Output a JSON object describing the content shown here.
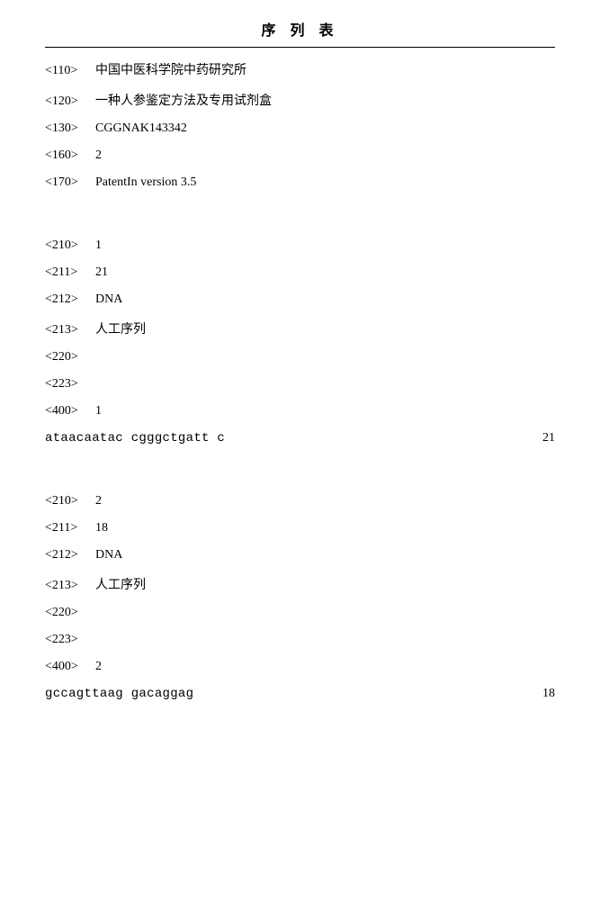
{
  "title": "序 列 表",
  "header": [
    {
      "code": "<110>",
      "value": "中国中医科学院中药研究所"
    },
    {
      "code": "<120>",
      "value": "一种人参鉴定方法及专用试剂盒"
    },
    {
      "code": "<130>",
      "value": "CGGNAK143342"
    },
    {
      "code": "<160>",
      "value": "2"
    },
    {
      "code": "<170>",
      "value": "PatentIn version 3.5"
    }
  ],
  "seq1_meta": [
    {
      "code": "<210>",
      "value": "1"
    },
    {
      "code": "<211>",
      "value": "21"
    },
    {
      "code": "<212>",
      "value": "DNA"
    },
    {
      "code": "<213>",
      "value": "人工序列"
    },
    {
      "code": "<220>",
      "value": ""
    },
    {
      "code": "<223>",
      "value": ""
    },
    {
      "code": "<400>",
      "value": "1"
    }
  ],
  "seq1": {
    "text": "ataacaatac cgggctgatt c",
    "len": "21"
  },
  "seq2_meta": [
    {
      "code": "<210>",
      "value": "2"
    },
    {
      "code": "<211>",
      "value": "18"
    },
    {
      "code": "<212>",
      "value": "DNA"
    },
    {
      "code": "<213>",
      "value": "人工序列"
    },
    {
      "code": "<220>",
      "value": ""
    },
    {
      "code": "<223>",
      "value": ""
    },
    {
      "code": "<400>",
      "value": "2"
    }
  ],
  "seq2": {
    "text": "gccagttaag gacaggag",
    "len": "18"
  }
}
